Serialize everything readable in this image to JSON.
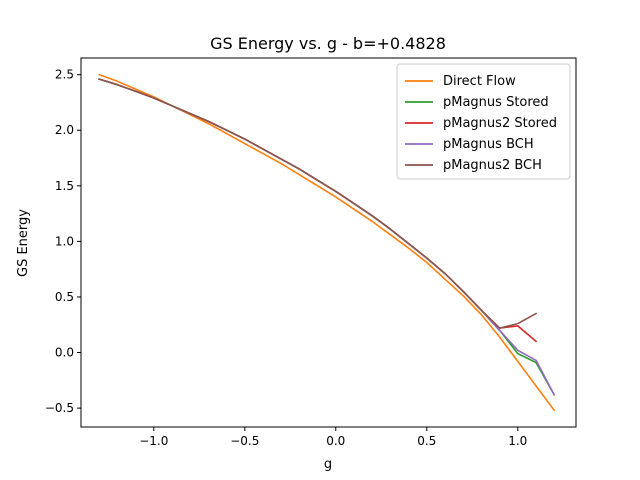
{
  "chart_data": {
    "type": "line",
    "title": "GS Energy vs. g - b=+0.4828",
    "xlabel": "g",
    "ylabel": "GS Energy",
    "xlim": [
      -1.4,
      1.32
    ],
    "ylim": [
      -0.67,
      2.65
    ],
    "xticks": [
      -1.0,
      -0.5,
      0.0,
      0.5,
      1.0
    ],
    "xtick_labels": [
      "−1.0",
      "−0.5",
      "0.0",
      "0.5",
      "1.0"
    ],
    "yticks": [
      -0.5,
      0.0,
      0.5,
      1.0,
      1.5,
      2.0,
      2.5
    ],
    "ytick_labels": [
      "−0.5",
      "0.0",
      "0.5",
      "1.0",
      "1.5",
      "2.0",
      "2.5"
    ],
    "grid": false,
    "legend_position": "top-right",
    "series": [
      {
        "name": "Direct Flow",
        "color": "#ff7f0e",
        "x": [
          -1.3,
          -1.2,
          -1.1,
          -1.0,
          -0.9,
          -0.8,
          -0.7,
          -0.6,
          -0.5,
          -0.4,
          -0.3,
          -0.2,
          -0.1,
          0.0,
          0.1,
          0.2,
          0.3,
          0.4,
          0.5,
          0.6,
          0.7,
          0.8,
          0.9,
          1.0,
          1.1,
          1.2
        ],
        "y": [
          2.5,
          2.44,
          2.37,
          2.3,
          2.22,
          2.14,
          2.06,
          1.97,
          1.88,
          1.79,
          1.7,
          1.6,
          1.5,
          1.4,
          1.29,
          1.18,
          1.06,
          0.94,
          0.81,
          0.66,
          0.51,
          0.34,
          0.14,
          -0.08,
          -0.3,
          -0.52
        ]
      },
      {
        "name": "pMagnus Stored",
        "color": "#2ca02c",
        "x": [
          -1.3,
          -1.2,
          -1.1,
          -1.0,
          -0.9,
          -0.8,
          -0.7,
          -0.6,
          -0.5,
          -0.4,
          -0.3,
          -0.2,
          -0.1,
          0.0,
          0.1,
          0.2,
          0.3,
          0.4,
          0.5,
          0.6,
          0.7,
          0.8,
          0.9,
          1.0,
          1.1,
          1.2
        ],
        "y": [
          2.46,
          2.41,
          2.35,
          2.29,
          2.22,
          2.15,
          2.08,
          2.0,
          1.92,
          1.83,
          1.74,
          1.65,
          1.55,
          1.45,
          1.34,
          1.23,
          1.11,
          0.98,
          0.85,
          0.71,
          0.55,
          0.38,
          0.2,
          -0.01,
          -0.09,
          -0.38
        ]
      },
      {
        "name": "pMagnus2 Stored",
        "color": "#d62728",
        "x": [
          -1.3,
          -1.2,
          -1.1,
          -1.0,
          -0.9,
          -0.8,
          -0.7,
          -0.6,
          -0.5,
          -0.4,
          -0.3,
          -0.2,
          -0.1,
          0.0,
          0.1,
          0.2,
          0.3,
          0.4,
          0.5,
          0.6,
          0.7,
          0.8,
          0.9,
          1.0,
          1.1
        ],
        "y": [
          2.46,
          2.41,
          2.35,
          2.29,
          2.22,
          2.15,
          2.08,
          2.0,
          1.92,
          1.83,
          1.74,
          1.65,
          1.55,
          1.45,
          1.34,
          1.23,
          1.11,
          0.98,
          0.85,
          0.71,
          0.55,
          0.38,
          0.22,
          0.24,
          0.1
        ]
      },
      {
        "name": "pMagnus BCH",
        "color": "#9467bd",
        "x": [
          -1.3,
          -1.2,
          -1.1,
          -1.0,
          -0.9,
          -0.8,
          -0.7,
          -0.6,
          -0.5,
          -0.4,
          -0.3,
          -0.2,
          -0.1,
          0.0,
          0.1,
          0.2,
          0.3,
          0.4,
          0.5,
          0.6,
          0.7,
          0.8,
          0.9,
          1.0,
          1.1,
          1.2
        ],
        "y": [
          2.46,
          2.41,
          2.35,
          2.29,
          2.22,
          2.15,
          2.08,
          2.0,
          1.92,
          1.83,
          1.74,
          1.65,
          1.55,
          1.45,
          1.34,
          1.23,
          1.11,
          0.98,
          0.85,
          0.71,
          0.55,
          0.38,
          0.2,
          0.02,
          -0.07,
          -0.38
        ]
      },
      {
        "name": "pMagnus2 BCH",
        "color": "#8c564b",
        "x": [
          -1.3,
          -1.2,
          -1.1,
          -1.0,
          -0.9,
          -0.8,
          -0.7,
          -0.6,
          -0.5,
          -0.4,
          -0.3,
          -0.2,
          -0.1,
          0.0,
          0.1,
          0.2,
          0.3,
          0.4,
          0.5,
          0.6,
          0.7,
          0.8,
          0.9,
          1.0,
          1.1
        ],
        "y": [
          2.46,
          2.41,
          2.35,
          2.29,
          2.22,
          2.15,
          2.08,
          2.0,
          1.92,
          1.83,
          1.74,
          1.65,
          1.55,
          1.45,
          1.34,
          1.23,
          1.11,
          0.98,
          0.85,
          0.71,
          0.55,
          0.38,
          0.22,
          0.26,
          0.35
        ]
      }
    ]
  }
}
